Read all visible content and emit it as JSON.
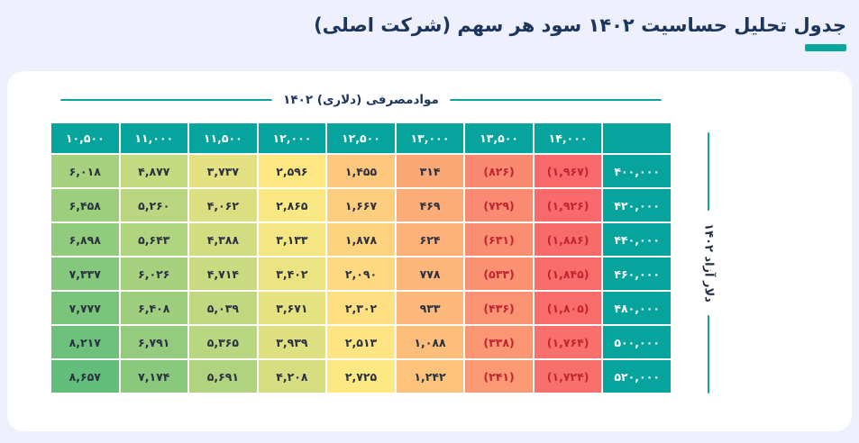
{
  "header": {
    "title": "جدول تحلیل حساسیت ۱۴۰۲ سود هر سهم (شرکت اصلی)"
  },
  "table": {
    "top_axis_label": "موادمصرفی (دلاری) ۱۴۰۲",
    "side_axis_label": "دلار آزاد ۱۴۰۲"
  },
  "colors": {
    "page_background": "#EEF0FD",
    "card_background": "#FFFFFF",
    "title_navy": "#1B355C",
    "accent_teal": "#0AA69E",
    "header_cell_teal": "#06A49C",
    "positive_text": "#2B3140",
    "negative_text": "#C22431"
  },
  "chart_data": {
    "type": "heatmap",
    "title": "جدول تحلیل حساسیت ۱۴۰۲ سود هر سهم (شرکت اصلی)",
    "x_axis_label": "موادمصرفی (دلاری) ۱۴۰۲",
    "y_axis_label": "دلار آزاد ۱۴۰۲",
    "x_categories": [
      10500,
      11000,
      11500,
      12000,
      12500,
      13000,
      13500,
      14000
    ],
    "y_categories": [
      400000,
      420000,
      440000,
      460000,
      480000,
      500000,
      520000
    ],
    "values": [
      [
        6018,
        4877,
        3737,
        2596,
        1455,
        314,
        -826,
        -1967
      ],
      [
        6458,
        5260,
        4062,
        2865,
        1667,
        469,
        -729,
        -1926
      ],
      [
        6898,
        5643,
        4388,
        3133,
        1878,
        624,
        -631,
        -1886
      ],
      [
        7337,
        6026,
        4714,
        3402,
        2090,
        778,
        -533,
        -1845
      ],
      [
        7777,
        6408,
        5039,
        3671,
        2302,
        933,
        -436,
        -1805
      ],
      [
        8217,
        6791,
        5365,
        3939,
        2513,
        1088,
        -338,
        -1764
      ],
      [
        8657,
        7174,
        5691,
        4208,
        2725,
        1242,
        -241,
        -1724
      ]
    ],
    "number_format": "persian-digits-thousands-comma-negatives-in-parentheses",
    "legend_position": "none",
    "grid": false,
    "color_scale": {
      "min_color": "#F8696B",
      "mid_color": "#FFE984",
      "max_color": "#63BE7B",
      "midpoint": 2660
    }
  }
}
